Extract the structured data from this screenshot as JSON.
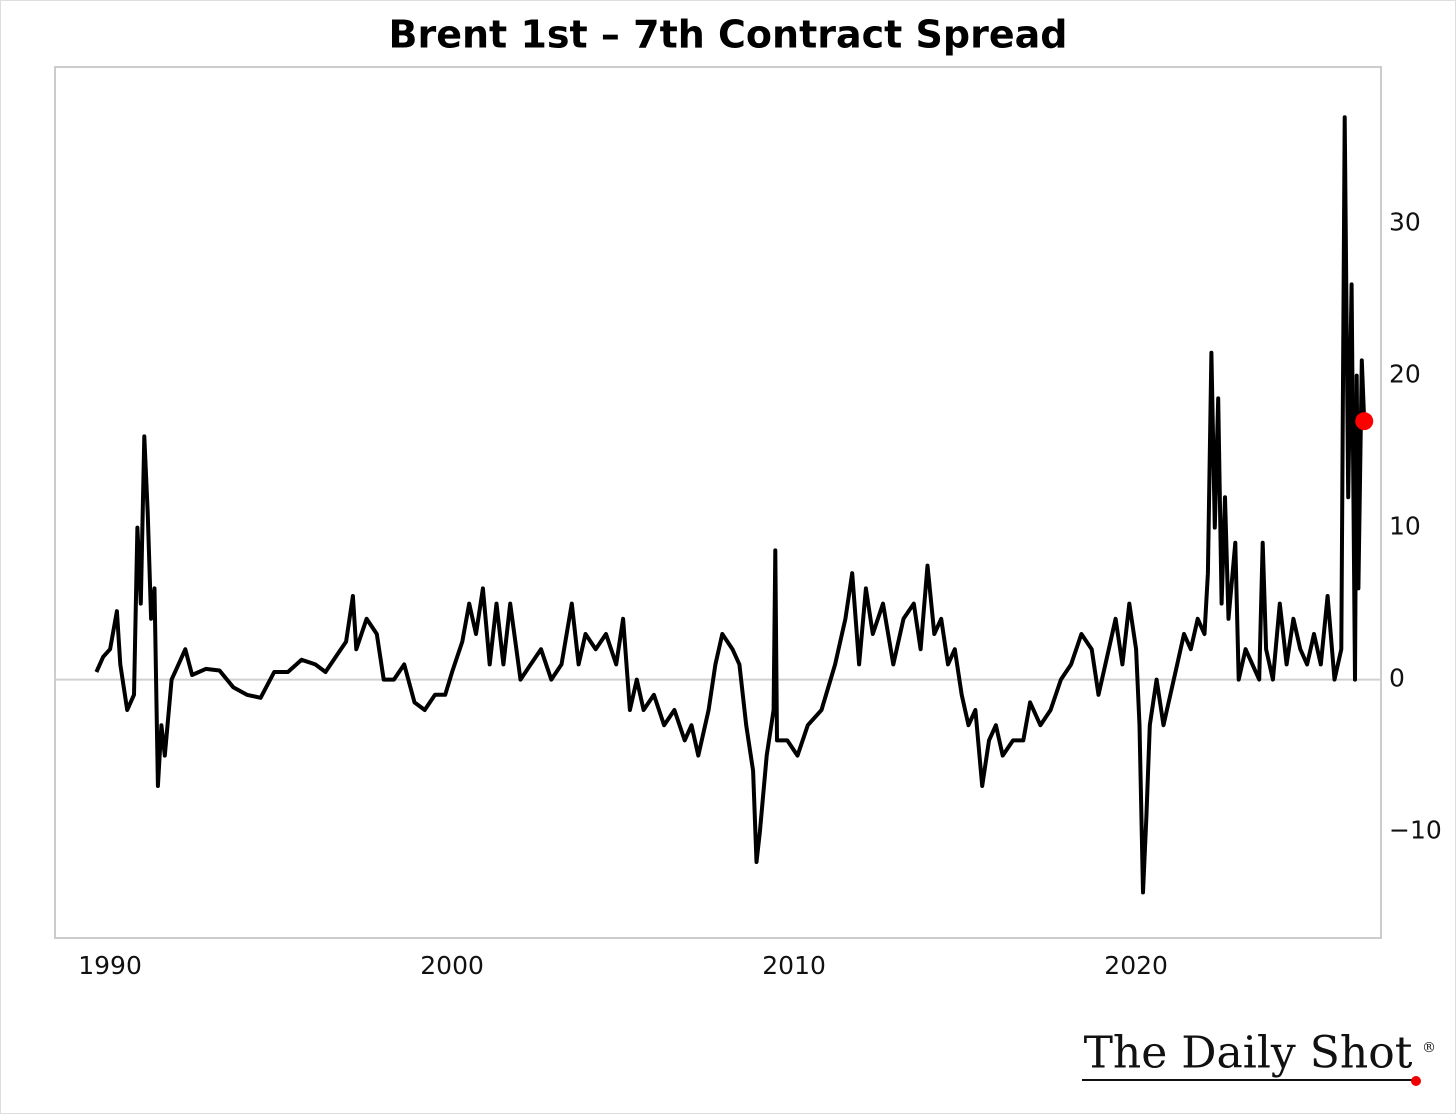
{
  "chart_data": {
    "type": "line",
    "title": "Brent 1st – 7th Contract Spread",
    "logo": "The Daily Shot",
    "logo_mark": "®",
    "x": [
      1989.6,
      1989.8,
      1990.0,
      1990.2,
      1990.3,
      1990.5,
      1990.7,
      1990.8,
      1990.9,
      1991.0,
      1991.1,
      1991.2,
      1991.3,
      1991.4,
      1991.5,
      1991.6,
      1991.8,
      1992.0,
      1992.2,
      1992.4,
      1992.8,
      1993.2,
      1993.6,
      1994.0,
      1994.4,
      1994.8,
      1995.2,
      1995.6,
      1996.0,
      1996.3,
      1996.6,
      1996.9,
      1997.1,
      1997.2,
      1997.5,
      1997.8,
      1998.0,
      1998.3,
      1998.6,
      1998.9,
      1999.2,
      1999.5,
      1999.8,
      2000.0,
      2000.3,
      2000.5,
      2000.7,
      2000.9,
      2001.1,
      2001.3,
      2001.5,
      2001.7,
      2002.0,
      2002.3,
      2002.6,
      2002.9,
      2003.2,
      2003.5,
      2003.7,
      2003.9,
      2004.2,
      2004.5,
      2004.8,
      2005.0,
      2005.2,
      2005.4,
      2005.6,
      2005.9,
      2006.2,
      2006.5,
      2006.8,
      2007.0,
      2007.2,
      2007.5,
      2007.7,
      2007.9,
      2008.2,
      2008.4,
      2008.6,
      2008.8,
      2008.9,
      2009.0,
      2009.2,
      2009.4,
      2009.45,
      2009.5,
      2009.8,
      2010.1,
      2010.4,
      2010.8,
      2011.2,
      2011.5,
      2011.7,
      2011.9,
      2012.1,
      2012.3,
      2012.6,
      2012.9,
      2013.2,
      2013.5,
      2013.7,
      2013.9,
      2014.1,
      2014.3,
      2014.5,
      2014.7,
      2014.9,
      2015.1,
      2015.3,
      2015.5,
      2015.7,
      2015.9,
      2016.1,
      2016.4,
      2016.7,
      2016.9,
      2017.2,
      2017.5,
      2017.8,
      2018.1,
      2018.4,
      2018.7,
      2018.9,
      2019.2,
      2019.4,
      2019.6,
      2019.8,
      2020.0,
      2020.1,
      2020.2,
      2020.3,
      2020.4,
      2020.6,
      2020.8,
      2020.9,
      2021.2,
      2021.4,
      2021.6,
      2021.8,
      2022.0,
      2022.1,
      2022.2,
      2022.3,
      2022.4,
      2022.5,
      2022.6,
      2022.7,
      2022.9,
      2023.0,
      2023.2,
      2023.4,
      2023.6,
      2023.7,
      2023.8,
      2024.0,
      2024.2,
      2024.4,
      2024.6,
      2024.8,
      2025.0,
      2025.2,
      2025.4,
      2025.6,
      2025.8,
      2026.0,
      2026.1,
      2026.2,
      2026.3,
      2026.4,
      2026.45,
      2026.5,
      2026.6,
      2026.67
    ],
    "series": [
      {
        "name": "Brent 1st – 7th Contract Spread",
        "color": "#000000",
        "last_point_color": "#ff0000",
        "values": [
          0.5,
          1.5,
          2,
          4.5,
          1,
          -2,
          -1,
          10,
          5,
          16,
          11,
          4,
          6,
          -7,
          -3,
          -5,
          0,
          1,
          2,
          0.3,
          0.7,
          0.6,
          -0.5,
          -1,
          -1.2,
          0.5,
          0.5,
          1.3,
          1,
          0.5,
          1.5,
          2.5,
          5.5,
          2,
          4,
          3,
          0,
          0,
          1,
          -1.5,
          -2,
          -1,
          -1,
          0.5,
          2.5,
          5,
          3,
          6,
          1,
          5,
          1,
          5,
          0,
          1,
          2,
          0,
          1,
          5,
          1,
          3,
          2,
          3,
          1,
          4,
          -2,
          0,
          -2,
          -1,
          -3,
          -2,
          -4,
          -3,
          -5,
          -2,
          1,
          3,
          2,
          1,
          -3,
          -6,
          -12,
          -10,
          -5,
          -2,
          8.5,
          -4,
          -4,
          -5,
          -3,
          -2,
          1,
          4,
          7,
          1,
          6,
          3,
          5,
          1,
          4,
          5,
          2,
          7.5,
          3,
          4,
          1,
          2,
          -1,
          -3,
          -2,
          -7,
          -4,
          -3,
          -5,
          -4,
          -4,
          -1.5,
          -3,
          -2,
          0,
          1,
          3,
          2,
          -1,
          2,
          4,
          1,
          5,
          2,
          -3,
          -14,
          -9,
          -3,
          0,
          -3,
          -2,
          1,
          3,
          2,
          4,
          3,
          7,
          21.5,
          10,
          18.5,
          5,
          12,
          4,
          9,
          0,
          2,
          1,
          0,
          9,
          2,
          0,
          5,
          1,
          4,
          2,
          1,
          3,
          1,
          5.5,
          0,
          2,
          37,
          12,
          26,
          0,
          20,
          6,
          21,
          17
        ]
      }
    ],
    "xlim": [
      1988.39,
      2027.16
    ],
    "ylim": [
      -17,
      40.3
    ],
    "xticks": [
      1990,
      2000,
      2010,
      2020
    ],
    "yticks": [
      {
        "value": -10,
        "label": "−10"
      },
      0,
      10,
      20,
      30
    ],
    "reference_line": 0
  }
}
